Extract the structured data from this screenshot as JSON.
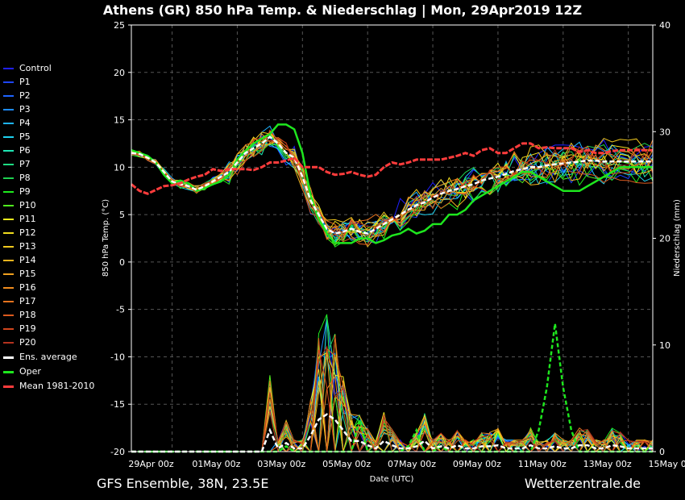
{
  "title": "Athens  (GR)  850 hPa Temp. & Niederschlag | Mon, 29Apr2019 12Z",
  "footer_left": "GFS Ensemble, 38N, 23.5E",
  "footer_right": "Wetterzentrale.de",
  "chart_data": {
    "type": "line",
    "xlabel": "Date (UTC)",
    "ylabel_left": "850 hPa Temp. (°C)",
    "ylabel_right": "Niederschlag (mm)",
    "ylim_left": [
      -20,
      25
    ],
    "ylim_right": [
      0,
      40
    ],
    "x_step_hours": 6,
    "x_range_hours": [
      0,
      384
    ],
    "x_ticks": [
      "29Apr 00z",
      "01May 00z",
      "03May 00z",
      "05May 00z",
      "07May 00z",
      "09May 00z",
      "11May 00z",
      "13May 00z",
      "15May 00z"
    ],
    "y_ticks_left": [
      25,
      20,
      15,
      10,
      5,
      0,
      -5,
      -10,
      -15,
      -20
    ],
    "y_ticks_right": [
      40,
      30,
      20,
      10,
      0
    ],
    "grid": true,
    "legend_position": "left",
    "members": [
      {
        "name": "Control",
        "color": "#2020ff"
      },
      {
        "name": "P1",
        "color": "#1e46ff"
      },
      {
        "name": "P2",
        "color": "#1e64ff"
      },
      {
        "name": "P3",
        "color": "#1e8cff"
      },
      {
        "name": "P4",
        "color": "#1eb4ff"
      },
      {
        "name": "P5",
        "color": "#1ed2f0"
      },
      {
        "name": "P6",
        "color": "#1ee6b4"
      },
      {
        "name": "P7",
        "color": "#1edc82"
      },
      {
        "name": "P8",
        "color": "#1ed250"
      },
      {
        "name": "P9",
        "color": "#1eeb1e"
      },
      {
        "name": "P10",
        "color": "#50f01e"
      },
      {
        "name": "P11",
        "color": "#f0f01e"
      },
      {
        "name": "P12",
        "color": "#f0dc1e"
      },
      {
        "name": "P13",
        "color": "#f0c81e"
      },
      {
        "name": "P14",
        "color": "#f0b41e"
      },
      {
        "name": "P15",
        "color": "#f0a01e"
      },
      {
        "name": "P16",
        "color": "#f08c1e"
      },
      {
        "name": "P17",
        "color": "#e6731e"
      },
      {
        "name": "P18",
        "color": "#dc5a1e"
      },
      {
        "name": "P19",
        "color": "#d2461e"
      },
      {
        "name": "P20",
        "color": "#b4321e"
      }
    ],
    "ens_average": {
      "name": "Ens. average",
      "color": "#ffffff",
      "temp": [
        11.5,
        11.4,
        11,
        10.5,
        9.5,
        8.5,
        8.2,
        8,
        7.6,
        8,
        8.5,
        9,
        9.5,
        10.5,
        11.5,
        12,
        12.5,
        13.2,
        12.5,
        11.5,
        11,
        9,
        6.5,
        5,
        3.5,
        3,
        3.2,
        3.5,
        3.2,
        3,
        3.5,
        4,
        4.5,
        5,
        5.5,
        6,
        6.3,
        6.8,
        7.2,
        7.5,
        7.7,
        8,
        8.2,
        8.6,
        8.8,
        9,
        9.3,
        9.6,
        9.8,
        10,
        10,
        10.2,
        10.3,
        10.4,
        10.5,
        10.6,
        10.7,
        10.7,
        10.6,
        10.6,
        10.6,
        10.6,
        10.6,
        10.6,
        10.6
      ],
      "precip": [
        0,
        0,
        0,
        0,
        0,
        0,
        0,
        0,
        0,
        0,
        0,
        0,
        0,
        0,
        0,
        0,
        0,
        2,
        0.3,
        0.8,
        0.3,
        0.3,
        1.5,
        3,
        3.5,
        3,
        2,
        1,
        1,
        0.6,
        0.3,
        1,
        0.6,
        0.3,
        0.3,
        0.5,
        1,
        0.3,
        0.5,
        0.3,
        0.6,
        0.3,
        0.3,
        0.5,
        0.5,
        0.6,
        0.3,
        0.3,
        0.3,
        0.6,
        0.3,
        0.3,
        0.5,
        0.3,
        0.3,
        0.6,
        0.6,
        0.3,
        0.3,
        0.6,
        0.5,
        0.3,
        0.3,
        0.3,
        0.3
      ]
    },
    "oper": {
      "name": "Oper",
      "color": "#1ee61e",
      "temp": [
        11.8,
        11.5,
        11.2,
        10.5,
        9.2,
        8.3,
        8.6,
        8.3,
        7.5,
        7.8,
        8.2,
        8.5,
        9.2,
        10.8,
        11.7,
        12.5,
        13,
        13.5,
        14.5,
        14.5,
        14,
        11.5,
        7,
        4.5,
        3,
        2,
        2,
        2,
        2.5,
        2.5,
        2,
        2.3,
        2.8,
        3,
        3.5,
        3,
        3.3,
        4,
        4,
        5,
        5,
        5.5,
        6.5,
        7,
        7.5,
        8,
        8.5,
        9,
        9.5,
        9.5,
        9,
        8.5,
        8,
        7.5,
        7.5,
        7.5,
        8,
        8.5,
        9,
        9.5,
        10,
        10,
        10,
        10,
        10
      ],
      "precip": [
        0,
        0,
        0,
        0,
        0,
        0,
        0,
        0,
        0,
        0,
        0,
        0,
        0,
        0,
        0,
        0,
        0,
        0,
        0,
        0.5,
        0,
        0,
        0,
        0,
        0,
        0,
        0,
        0,
        3,
        0,
        0,
        0,
        0,
        0,
        0.5,
        2,
        0,
        0,
        0.5,
        0,
        0,
        0,
        0,
        0,
        0,
        0,
        0,
        0,
        0,
        0,
        2,
        6,
        12,
        6,
        2,
        0,
        0,
        0,
        0,
        0,
        0,
        0,
        0,
        0,
        0
      ]
    },
    "mean_1981_2010": {
      "name": "Mean 1981-2010",
      "color": "#ff3c3c",
      "temp": [
        8.2,
        7.5,
        7.2,
        7.6,
        8,
        8.1,
        8.3,
        8.7,
        9,
        9.2,
        9.8,
        9.6,
        9.8,
        9.8,
        9.8,
        9.7,
        10,
        10.5,
        10.5,
        10.7,
        11,
        10,
        10,
        10,
        9.5,
        9.2,
        9.3,
        9.5,
        9.2,
        9,
        9.2,
        10,
        10.5,
        10.3,
        10.5,
        10.8,
        10.8,
        10.8,
        10.8,
        11,
        11.2,
        11.5,
        11.2,
        11.8,
        12,
        11.5,
        11.5,
        12,
        12.5,
        12.5,
        12,
        12.1,
        12,
        12,
        12,
        11.6,
        11.8,
        11.5,
        11.5,
        11.7,
        11.8,
        11.8,
        11.8,
        11.8,
        11.8
      ]
    }
  }
}
